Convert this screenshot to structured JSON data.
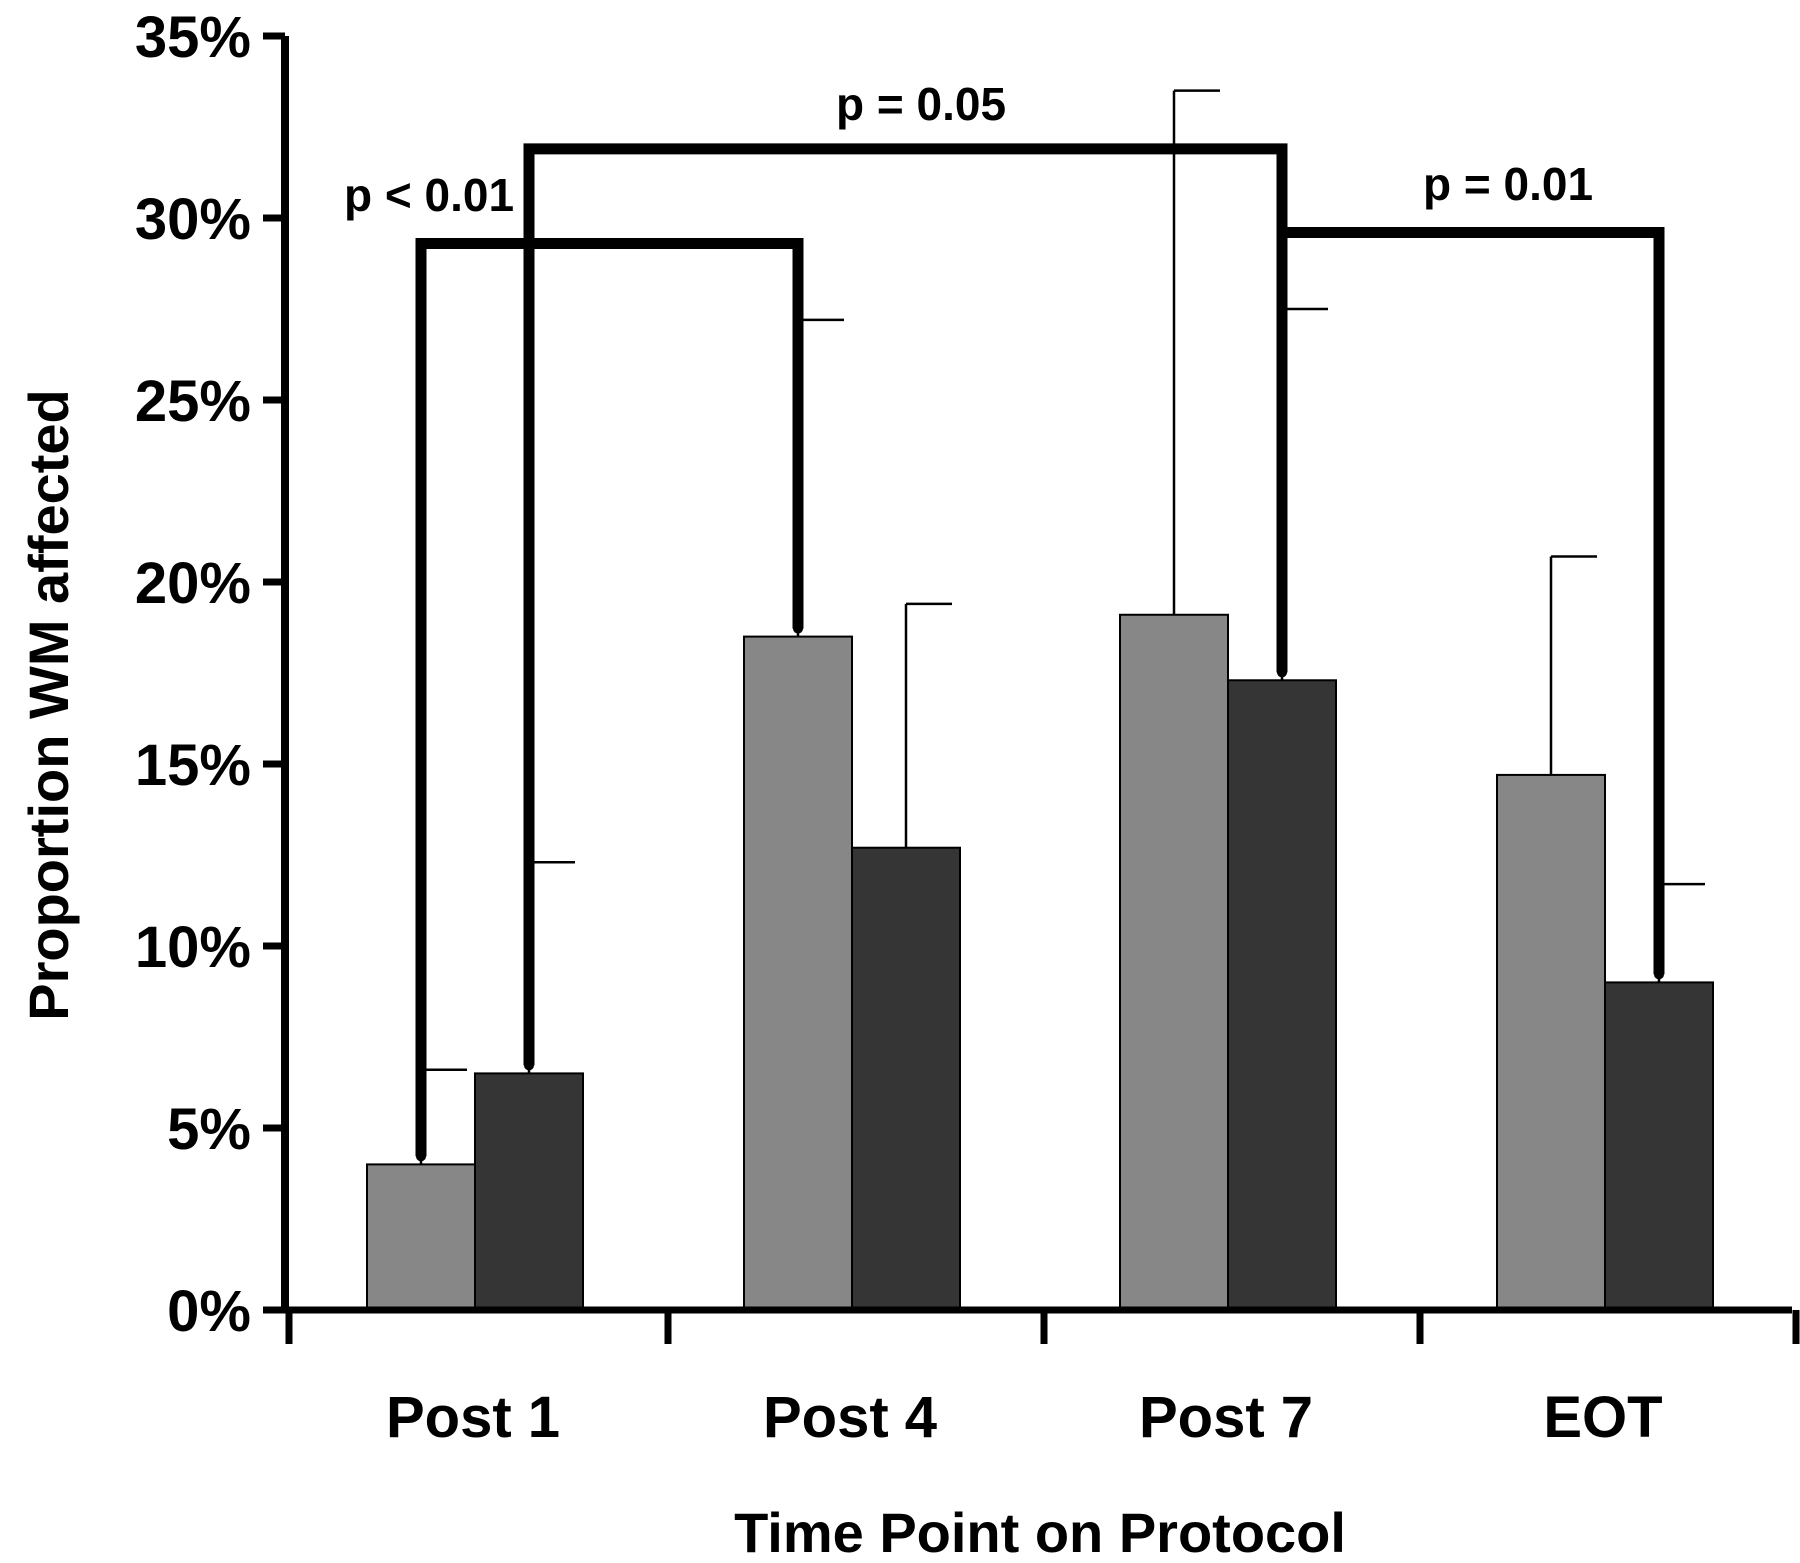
{
  "chart_data": {
    "type": "bar",
    "title": "",
    "xlabel": "Time Point on Protocol",
    "ylabel": "Proportion WM affected",
    "categories": [
      "Post 1",
      "Post 4",
      "Post 7",
      "EOT"
    ],
    "ylim": [
      0,
      35
    ],
    "yticks": [
      0,
      5,
      10,
      15,
      20,
      25,
      30,
      35
    ],
    "ytick_labels": [
      "0%",
      "5%",
      "10%",
      "15%",
      "20%",
      "25%",
      "30%",
      "35%"
    ],
    "grid": false,
    "legend": "none",
    "series": [
      {
        "color": "#878787",
        "values": [
          4.0,
          18.5,
          19.1,
          14.7
        ],
        "error_upper": [
          6.6,
          27.2,
          33.5,
          20.7
        ]
      },
      {
        "color": "#353535",
        "values": [
          6.5,
          12.7,
          17.3,
          9.0
        ],
        "error_upper": [
          12.3,
          19.4,
          27.5,
          11.7
        ]
      }
    ],
    "annotations": [
      {
        "text": "p < 0.01",
        "from": {
          "category": 0,
          "series": 0
        },
        "to": {
          "category": 1,
          "series": 0
        },
        "level": 29.3
      },
      {
        "text": "p = 0.05",
        "from": {
          "category": 0,
          "series": 1
        },
        "to": {
          "category": 2,
          "series": 1
        },
        "level": 31.9
      },
      {
        "text": "p = 0.01",
        "from": {
          "category": 2,
          "series": 1
        },
        "to": {
          "category": 3,
          "series": 1
        },
        "level": 29.6
      }
    ]
  }
}
